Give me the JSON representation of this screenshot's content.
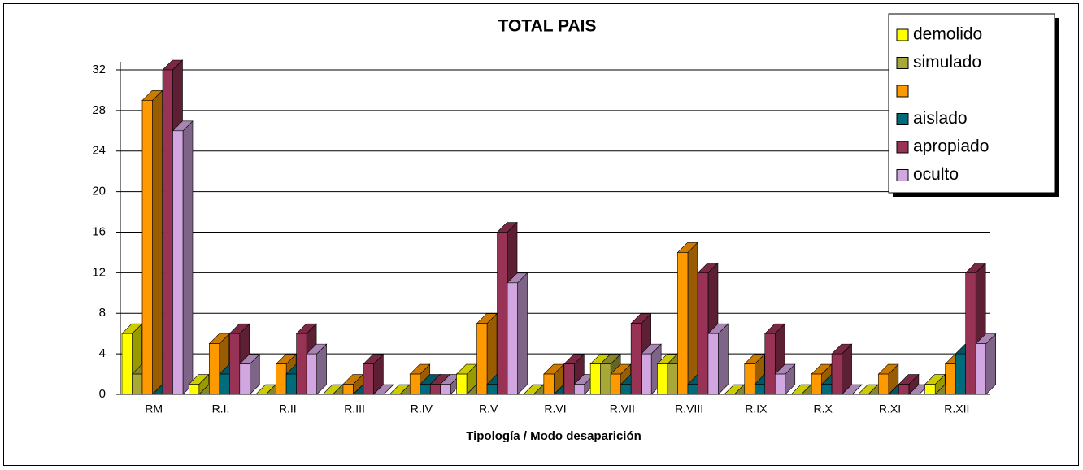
{
  "chart_data": {
    "type": "bar3d",
    "title": "TOTAL PAIS",
    "x_label": "Tipología / Modo desaparición",
    "categories": [
      "RM",
      "R.I.",
      "R.II",
      "R.III",
      "R.IV",
      "R.V",
      "R.VI",
      "R.VII",
      "R.VIII",
      "R.IX",
      "R.X",
      "R.XI",
      "R.XII"
    ],
    "series": [
      {
        "name": "demolido",
        "color": "#ffff00",
        "values": [
          6,
          1,
          0,
          0,
          0,
          2,
          0,
          3,
          3,
          0,
          0,
          0,
          1
        ]
      },
      {
        "name": "simulado",
        "color": "#a8a838",
        "values": [
          2,
          0,
          0,
          0,
          0,
          0,
          0,
          3,
          3,
          0,
          0,
          0,
          0
        ]
      },
      {
        "name": null,
        "color": "#ff9900",
        "values": [
          29,
          5,
          3,
          1,
          2,
          7,
          2,
          2,
          14,
          3,
          2,
          2,
          3
        ]
      },
      {
        "name": "aislado",
        "color": "#006b7a",
        "values": [
          0,
          2,
          2,
          0,
          1,
          1,
          0,
          1,
          1,
          1,
          1,
          0,
          4
        ]
      },
      {
        "name": "apropiado",
        "color": "#993355",
        "values": [
          32,
          6,
          6,
          3,
          1,
          16,
          3,
          7,
          12,
          6,
          4,
          1,
          12
        ]
      },
      {
        "name": "oculto",
        "color": "#d2a6e0",
        "values": [
          26,
          3,
          4,
          0,
          1,
          11,
          1,
          4,
          6,
          2,
          0,
          0,
          5
        ]
      }
    ],
    "ylim": [
      0,
      32
    ],
    "yticks": [
      0,
      4,
      8,
      12,
      16,
      20,
      24,
      28,
      32
    ],
    "grid": true,
    "legend": "top-right"
  }
}
